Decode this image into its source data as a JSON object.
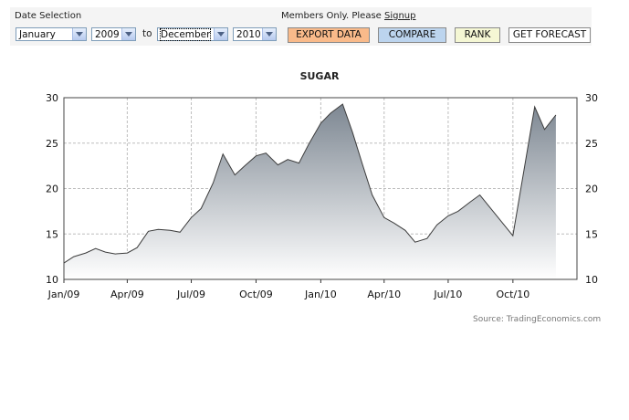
{
  "toolbar": {
    "date_selection_label": "Date Selection",
    "members_text": "Members Only. Please",
    "signup_link": "Signup",
    "from_month": "January",
    "from_year": "2009",
    "to_label": "to",
    "to_month": "December",
    "to_year": "2010",
    "buttons": {
      "export": "EXPORT DATA",
      "compare": "COMPARE",
      "rank": "RANK",
      "forecast": "GET FORECAST"
    },
    "button_colors": {
      "export": "#f9ba8a",
      "compare": "#bcd4ee",
      "rank": "#f5f7d4",
      "forecast": "#ffffff"
    }
  },
  "source": "Source: TradingEconomics.com",
  "chart_data": {
    "type": "area",
    "title": "SUGAR",
    "x_ticks": [
      "Jan/09",
      "Apr/09",
      "Jul/09",
      "Oct/09",
      "Jan/10",
      "Apr/10",
      "Jul/10",
      "Oct/10"
    ],
    "y_ticks": [
      10,
      15,
      20,
      25,
      30
    ],
    "ylim": [
      10,
      30
    ],
    "xlim": [
      "2009-01-01",
      "2010-12-31"
    ],
    "grid": true,
    "fill_color": "#7d8792",
    "line_color": "#3c3c3c",
    "series": [
      {
        "x": [
          "2009-01-01",
          "2009-01-15",
          "2009-02-01",
          "2009-02-15",
          "2009-03-01",
          "2009-03-15",
          "2009-04-01",
          "2009-04-15",
          "2009-05-01",
          "2009-05-15",
          "2009-06-01",
          "2009-06-15",
          "2009-07-01",
          "2009-07-15",
          "2009-08-01",
          "2009-08-15",
          "2009-09-01",
          "2009-09-15",
          "2009-10-01",
          "2009-10-15",
          "2009-11-01",
          "2009-11-15",
          "2009-12-01",
          "2009-12-15",
          "2010-01-01",
          "2010-01-15",
          "2010-02-01",
          "2010-02-15",
          "2010-03-01",
          "2010-03-15",
          "2010-04-01",
          "2010-04-15",
          "2010-05-01",
          "2010-05-15",
          "2010-06-01",
          "2010-06-15",
          "2010-07-01",
          "2010-07-15",
          "2010-08-01",
          "2010-08-15",
          "2010-10-01",
          "2010-11-01",
          "2010-11-15",
          "2010-12-01"
        ],
        "values": [
          11.8,
          12.5,
          12.9,
          13.4,
          13.0,
          12.8,
          12.9,
          13.5,
          15.3,
          15.5,
          15.4,
          15.2,
          16.8,
          17.8,
          20.6,
          23.8,
          21.5,
          22.5,
          23.6,
          23.9,
          22.6,
          23.2,
          22.8,
          24.9,
          27.2,
          28.3,
          29.3,
          26.2,
          22.7,
          19.3,
          16.8,
          16.2,
          15.4,
          14.1,
          14.5,
          16.0,
          17.0,
          17.5,
          18.5,
          19.3,
          14.8,
          29.0,
          26.5,
          28.1
        ]
      }
    ]
  }
}
